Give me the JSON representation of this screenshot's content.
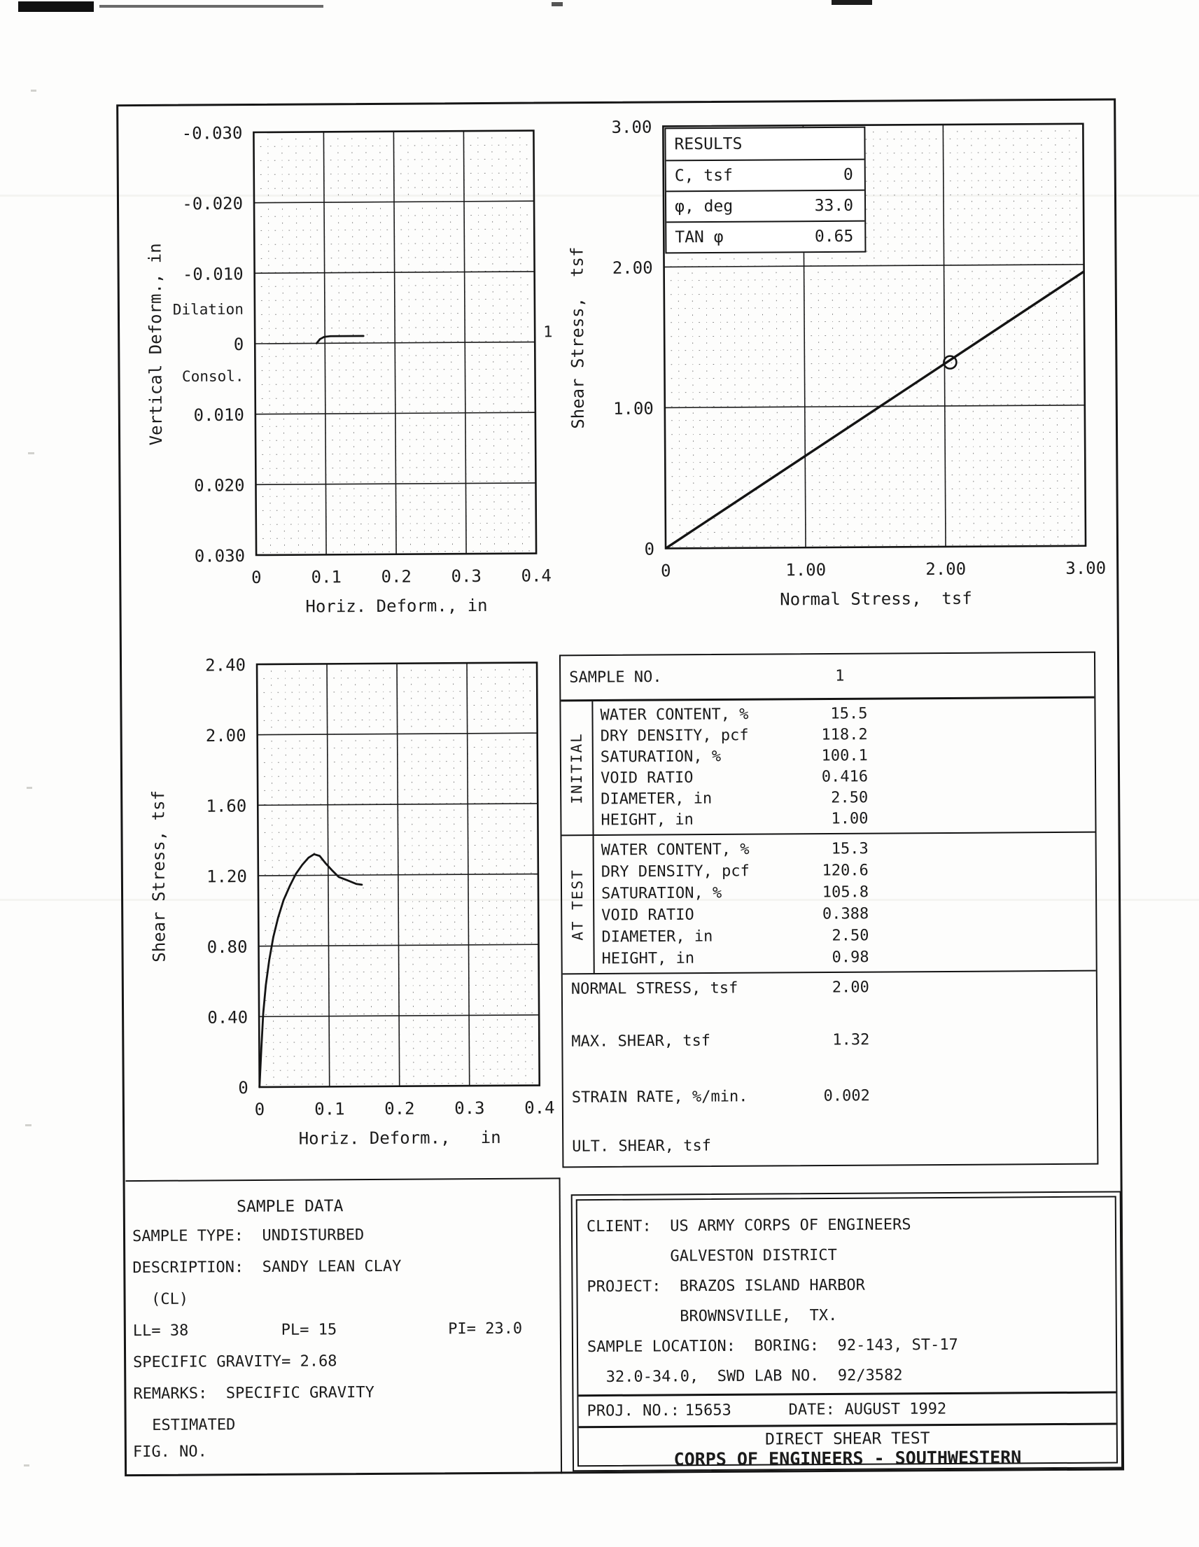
{
  "chart_data": [
    {
      "id": "vertical-deform-chart",
      "type": "line",
      "title": "Vertical deformation vs horizontal deformation",
      "xlabel": "Horiz. Deform., in",
      "ylabel": "Vertical Deform., in",
      "xlim": [
        0,
        0.4
      ],
      "ylim_top_bottom": [
        -0.03,
        0.03
      ],
      "xtick_values": [
        0,
        0.1,
        0.2,
        0.3,
        0.4
      ],
      "xtick_labels": [
        "0",
        "0.1",
        "0.2",
        "0.3",
        "0.4"
      ],
      "ytick_values": [
        -0.03,
        -0.02,
        -0.01,
        0,
        0.01,
        0.02,
        0.03
      ],
      "ytick_labels": [
        "-0.030",
        "-0.020",
        "-0.010",
        "0",
        "0.010",
        "0.020",
        "0.030"
      ],
      "grid": "major-solid-minor-dotted",
      "zone_labels": [
        {
          "text": "Dilation",
          "y": -0.005
        },
        {
          "text": "Consol.",
          "y": 0.0045
        }
      ],
      "series": [
        {
          "name": "1",
          "x": [
            0.088,
            0.093,
            0.099,
            0.108,
            0.155
          ],
          "y": [
            0,
            -0.0006,
            -0.0009,
            -0.001,
            -0.001
          ],
          "end_label": "1",
          "end_label_y": -0.0015
        }
      ]
    },
    {
      "id": "failure-envelope-chart",
      "type": "line",
      "title": "Shear stress vs normal stress (failure envelope)",
      "xlabel": "Normal Stress,  tsf",
      "ylabel": "Shear Stress,  tsf",
      "xlim": [
        0,
        3
      ],
      "ylim_top_bottom": [
        3,
        0
      ],
      "xtick_values": [
        0,
        1,
        2,
        3
      ],
      "xtick_labels": [
        "0",
        "1.00",
        "2.00",
        "3.00"
      ],
      "ytick_values": [
        3,
        2,
        1,
        0
      ],
      "ytick_labels": [
        "3.00",
        "2.00",
        "1.00",
        "0"
      ],
      "grid": "major-solid-minor-dotted",
      "envelope": {
        "c_tsf": 0,
        "tan_phi": 0.65,
        "x_start": 0,
        "x_end": 3.0
      },
      "points": [
        {
          "x": 2.04,
          "y": 1.31,
          "marker": "open-circle"
        }
      ]
    },
    {
      "id": "shear-deform-chart",
      "type": "line",
      "title": "Shear stress vs horizontal deformation",
      "xlabel": "Horiz. Deform.,   in",
      "ylabel": "Shear Stress, tsf",
      "xlim": [
        0,
        0.4
      ],
      "ylim_top_bottom": [
        2.4,
        0
      ],
      "xtick_values": [
        0,
        0.1,
        0.2,
        0.3,
        0.4
      ],
      "xtick_labels": [
        "0",
        "0.1",
        "0.2",
        "0.3",
        "0.4"
      ],
      "ytick_values": [
        2.4,
        2.0,
        1.6,
        1.2,
        0.8,
        0.4,
        0
      ],
      "ytick_labels": [
        "2.40",
        "2.00",
        "1.60",
        "1.20",
        "0.80",
        "0.40",
        "0"
      ],
      "grid": "major-solid-minor-dotted",
      "series": [
        {
          "name": "1",
          "x": [
            0,
            0.003,
            0.006,
            0.01,
            0.015,
            0.021,
            0.028,
            0.036,
            0.045,
            0.054,
            0.063,
            0.072,
            0.08,
            0.088,
            0.096,
            0.105,
            0.115,
            0.128,
            0.14,
            0.148
          ],
          "y": [
            0,
            0.22,
            0.42,
            0.58,
            0.72,
            0.85,
            0.96,
            1.06,
            1.14,
            1.21,
            1.26,
            1.3,
            1.32,
            1.31,
            1.27,
            1.23,
            1.19,
            1.17,
            1.15,
            1.145
          ]
        }
      ]
    }
  ],
  "results_table": {
    "title": "RESULTS",
    "rows": [
      [
        "C, tsf",
        "0"
      ],
      [
        "φ, deg",
        "33.0"
      ],
      [
        "TAN φ",
        "0.65"
      ]
    ]
  },
  "sample_table": {
    "sample_no_label": "SAMPLE NO.",
    "sample_no_value": "1",
    "groups": [
      {
        "label": "INITIAL",
        "rows": [
          [
            "WATER CONTENT, %",
            "15.5"
          ],
          [
            "DRY DENSITY, pcf",
            "118.2"
          ],
          [
            "SATURATION, %",
            "100.1"
          ],
          [
            "VOID RATIO",
            "0.416"
          ],
          [
            "DIAMETER, in",
            "2.50"
          ],
          [
            "HEIGHT, in",
            "1.00"
          ]
        ]
      },
      {
        "label": "AT TEST",
        "rows": [
          [
            "WATER CONTENT, %",
            "15.3"
          ],
          [
            "DRY DENSITY, pcf",
            "120.6"
          ],
          [
            "SATURATION, %",
            "105.8"
          ],
          [
            "VOID RATIO",
            "0.388"
          ],
          [
            "DIAMETER, in",
            "2.50"
          ],
          [
            "HEIGHT, in",
            "0.98"
          ]
        ]
      }
    ],
    "extra_rows": [
      [
        "NORMAL STRESS, tsf",
        "2.00"
      ],
      [
        "MAX. SHEAR, tsf",
        "1.32"
      ],
      [
        "STRAIN RATE, %/min.",
        "0.002"
      ],
      [
        "ULT. SHEAR, tsf",
        ""
      ]
    ]
  },
  "sample_data_box": {
    "title": "SAMPLE DATA",
    "lines": [
      "SAMPLE TYPE:  UNDISTURBED",
      "DESCRIPTION:  SANDY LEAN CLAY",
      "  (CL)",
      "LL= 38          PL= 15            PI= 23.0",
      "SPECIFIC GRAVITY= 2.68",
      "REMARKS:  SPECIFIC GRAVITY",
      "  ESTIMATED"
    ],
    "fig_no": "FIG. NO."
  },
  "client_box": {
    "lines": [
      "CLIENT:  US ARMY CORPS OF ENGINEERS",
      "         GALVESTON DISTRICT",
      "PROJECT:  BRAZOS ISLAND HARBOR",
      "          BROWNSVILLE,  TX.",
      "SAMPLE LOCATION:  BORING:  92-143, ST-17",
      "  32.0-34.0,  SWD LAB NO.  92/3582"
    ],
    "proj_no_label": "PROJ. NO.:",
    "proj_no_value": "15653",
    "date_label": "DATE:",
    "date_value": "AUGUST 1992",
    "test_title": "DIRECT SHEAR TEST",
    "org_title": "CORPS OF ENGINEERS - SOUTHWESTERN"
  }
}
